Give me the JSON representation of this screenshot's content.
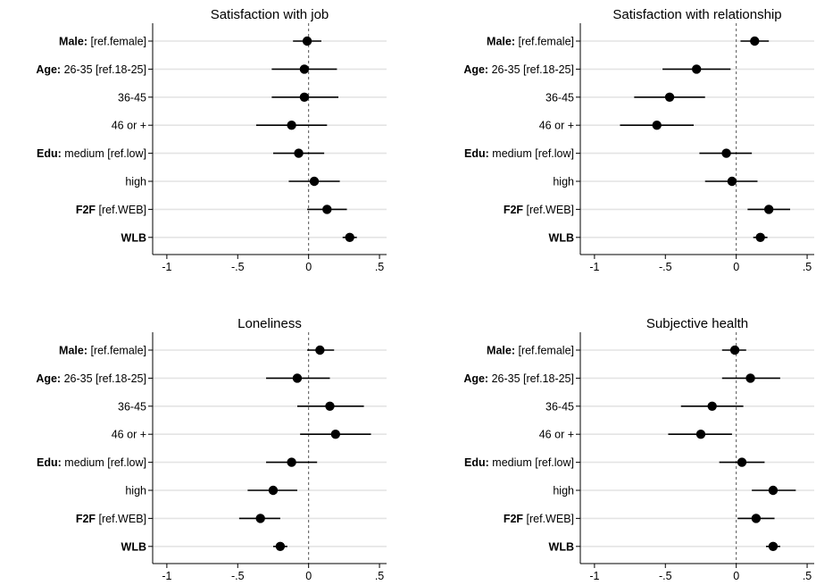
{
  "chart_data": [
    {
      "type": "scatter",
      "title": "Satisfaction with job",
      "xlim": [
        -1.1,
        0.55
      ],
      "xticks": [
        -1,
        -0.5,
        0,
        0.5
      ],
      "xtick_labels": [
        "-1",
        "-.5",
        "0",
        ".5"
      ],
      "zero_line": true,
      "categories": [
        {
          "bold": "Male:",
          "rest": " [ref.female]",
          "estimate": -0.01,
          "ci": [
            -0.11,
            0.09
          ]
        },
        {
          "bold": "Age:",
          "rest": " 26-35 [ref.18-25]",
          "estimate": -0.03,
          "ci": [
            -0.26,
            0.2
          ]
        },
        {
          "bold": "",
          "rest": "36-45",
          "estimate": -0.03,
          "ci": [
            -0.26,
            0.21
          ]
        },
        {
          "bold": "",
          "rest": "46 or +",
          "estimate": -0.12,
          "ci": [
            -0.37,
            0.13
          ]
        },
        {
          "bold": "Edu:",
          "rest": " medium [ref.low]",
          "estimate": -0.07,
          "ci": [
            -0.25,
            0.11
          ]
        },
        {
          "bold": "",
          "rest": "high",
          "estimate": 0.04,
          "ci": [
            -0.14,
            0.22
          ]
        },
        {
          "bold": "F2F",
          "rest": " [ref.WEB]",
          "estimate": 0.13,
          "ci": [
            -0.01,
            0.27
          ]
        },
        {
          "bold": "WLB",
          "rest": "",
          "estimate": 0.29,
          "ci": [
            0.24,
            0.34
          ]
        }
      ]
    },
    {
      "type": "scatter",
      "title": "Satisfaction with relationship",
      "xlim": [
        -1.1,
        0.55
      ],
      "xticks": [
        -1,
        -0.5,
        0,
        0.5
      ],
      "xtick_labels": [
        "-1",
        "-.5",
        "0",
        ".5"
      ],
      "zero_line": true,
      "categories": [
        {
          "bold": "Male:",
          "rest": " [ref.female]",
          "estimate": 0.13,
          "ci": [
            0.03,
            0.23
          ]
        },
        {
          "bold": "Age:",
          "rest": " 26-35 [ref.18-25]",
          "estimate": -0.28,
          "ci": [
            -0.52,
            -0.04
          ]
        },
        {
          "bold": "",
          "rest": "36-45",
          "estimate": -0.47,
          "ci": [
            -0.72,
            -0.22
          ]
        },
        {
          "bold": "",
          "rest": "46 or +",
          "estimate": -0.56,
          "ci": [
            -0.82,
            -0.3
          ]
        },
        {
          "bold": "Edu:",
          "rest": " medium [ref.low]",
          "estimate": -0.07,
          "ci": [
            -0.26,
            0.11
          ]
        },
        {
          "bold": "",
          "rest": "high",
          "estimate": -0.03,
          "ci": [
            -0.22,
            0.15
          ]
        },
        {
          "bold": "F2F",
          "rest": " [ref.WEB]",
          "estimate": 0.23,
          "ci": [
            0.08,
            0.38
          ]
        },
        {
          "bold": "WLB",
          "rest": "",
          "estimate": 0.17,
          "ci": [
            0.12,
            0.22
          ]
        }
      ]
    },
    {
      "type": "scatter",
      "title": "Loneliness",
      "xlim": [
        -1.1,
        0.55
      ],
      "xticks": [
        -1,
        -0.5,
        0,
        0.5
      ],
      "xtick_labels": [
        "-1",
        "-.5",
        "0",
        ".5"
      ],
      "zero_line": true,
      "categories": [
        {
          "bold": "Male:",
          "rest": " [ref.female]",
          "estimate": 0.08,
          "ci": [
            -0.01,
            0.18
          ]
        },
        {
          "bold": "Age:",
          "rest": " 26-35 [ref.18-25]",
          "estimate": -0.08,
          "ci": [
            -0.3,
            0.15
          ]
        },
        {
          "bold": "",
          "rest": "36-45",
          "estimate": 0.15,
          "ci": [
            -0.08,
            0.39
          ]
        },
        {
          "bold": "",
          "rest": "46 or +",
          "estimate": 0.19,
          "ci": [
            -0.06,
            0.44
          ]
        },
        {
          "bold": "Edu:",
          "rest": " medium [ref.low]",
          "estimate": -0.12,
          "ci": [
            -0.3,
            0.06
          ]
        },
        {
          "bold": "",
          "rest": "high",
          "estimate": -0.25,
          "ci": [
            -0.43,
            -0.08
          ]
        },
        {
          "bold": "F2F",
          "rest": " [ref.WEB]",
          "estimate": -0.34,
          "ci": [
            -0.49,
            -0.2
          ]
        },
        {
          "bold": "WLB",
          "rest": "",
          "estimate": -0.2,
          "ci": [
            -0.25,
            -0.15
          ]
        }
      ]
    },
    {
      "type": "scatter",
      "title": "Subjective health",
      "xlim": [
        -1.1,
        0.55
      ],
      "xticks": [
        -1,
        -0.5,
        0,
        0.5
      ],
      "xtick_labels": [
        "-1",
        "-.5",
        "0",
        ".5"
      ],
      "zero_line": true,
      "categories": [
        {
          "bold": "Male:",
          "rest": " [ref.female]",
          "estimate": -0.01,
          "ci": [
            -0.1,
            0.07
          ]
        },
        {
          "bold": "Age:",
          "rest": " 26-35 [ref.18-25]",
          "estimate": 0.1,
          "ci": [
            -0.1,
            0.31
          ]
        },
        {
          "bold": "",
          "rest": "36-45",
          "estimate": -0.17,
          "ci": [
            -0.39,
            0.05
          ]
        },
        {
          "bold": "",
          "rest": "46 or +",
          "estimate": -0.25,
          "ci": [
            -0.48,
            -0.03
          ]
        },
        {
          "bold": "Edu:",
          "rest": " medium [ref.low]",
          "estimate": 0.04,
          "ci": [
            -0.12,
            0.2
          ]
        },
        {
          "bold": "",
          "rest": "high",
          "estimate": 0.26,
          "ci": [
            0.11,
            0.42
          ]
        },
        {
          "bold": "F2F",
          "rest": " [ref.WEB]",
          "estimate": 0.14,
          "ci": [
            0.01,
            0.27
          ]
        },
        {
          "bold": "WLB",
          "rest": "",
          "estimate": 0.26,
          "ci": [
            0.21,
            0.31
          ]
        }
      ]
    }
  ]
}
